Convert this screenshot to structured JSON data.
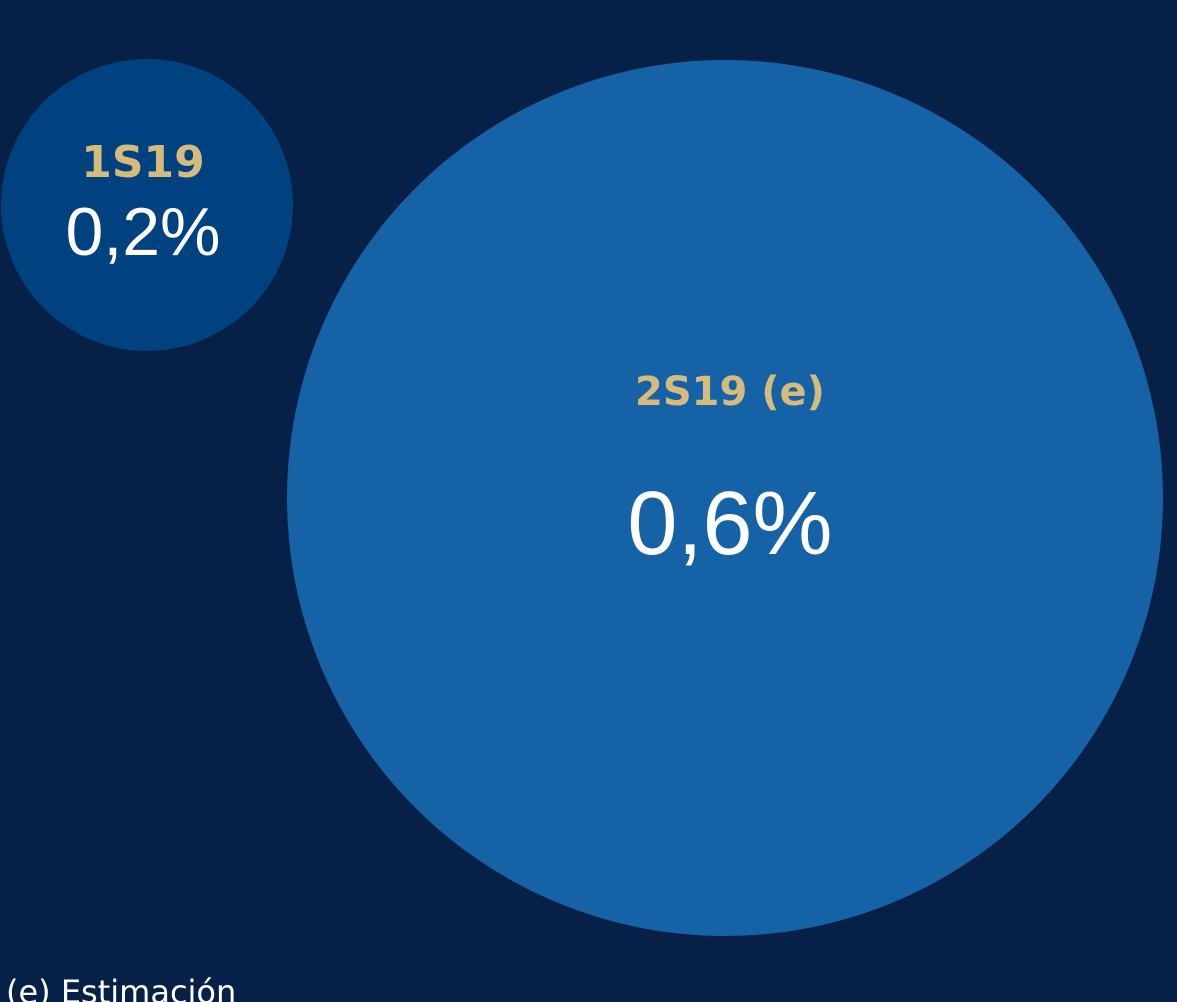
{
  "chart_data": {
    "type": "bubble",
    "categories": [
      "1S19",
      "2S19 (e)"
    ],
    "values": [
      0.2,
      0.6
    ],
    "value_labels": [
      "0,2%",
      "0,6%"
    ],
    "colors": [
      "#00417f",
      "#1562a6"
    ],
    "annotation": "(e) Estimación"
  }
}
